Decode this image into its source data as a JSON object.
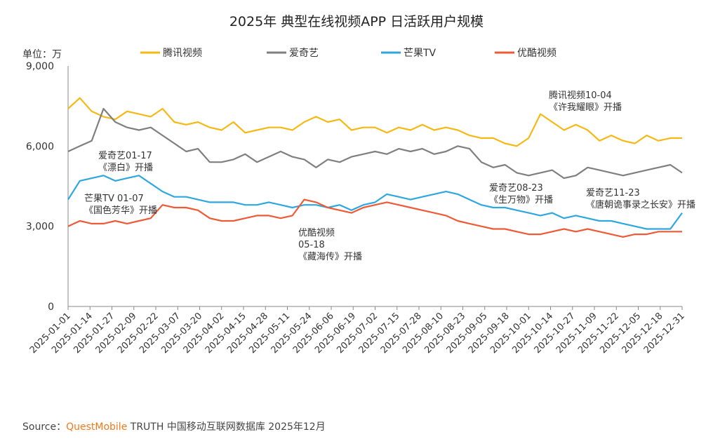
{
  "chart_data": {
    "type": "line",
    "title": "2025年 典型在线视频APP 日活跃用户规模",
    "y_label": "单位：万",
    "x": [
      "2025-01-01",
      "2025-01-08",
      "2025-01-15",
      "2025-01-22",
      "2025-01-29",
      "2025-02-05",
      "2025-02-12",
      "2025-02-19",
      "2025-02-26",
      "2025-03-05",
      "2025-03-12",
      "2025-03-19",
      "2025-03-26",
      "2025-04-02",
      "2025-04-09",
      "2025-04-16",
      "2025-04-23",
      "2025-04-30",
      "2025-05-07",
      "2025-05-14",
      "2025-05-21",
      "2025-05-28",
      "2025-06-04",
      "2025-06-11",
      "2025-06-18",
      "2025-06-25",
      "2025-07-02",
      "2025-07-09",
      "2025-07-16",
      "2025-07-23",
      "2025-07-30",
      "2025-08-06",
      "2025-08-13",
      "2025-08-20",
      "2025-08-27",
      "2025-09-03",
      "2025-09-10",
      "2025-09-17",
      "2025-09-24",
      "2025-10-01",
      "2025-10-08",
      "2025-10-15",
      "2025-10-22",
      "2025-10-29",
      "2025-11-05",
      "2025-11-12",
      "2025-11-19",
      "2025-11-26",
      "2025-12-03",
      "2025-12-10",
      "2025-12-17",
      "2025-12-24",
      "2025-12-31"
    ],
    "xlim": [
      "2025-01-01",
      "2025-12-31"
    ],
    "xticks": [
      "2025-01-01",
      "2025-01-14",
      "2025-01-27",
      "2025-02-09",
      "2025-02-22",
      "2025-03-07",
      "2025-03-20",
      "2025-04-02",
      "2025-04-15",
      "2025-04-28",
      "2025-05-11",
      "2025-05-24",
      "2025-06-06",
      "2025-06-19",
      "2025-07-02",
      "2025-07-15",
      "2025-07-28",
      "2025-08-10",
      "2025-08-23",
      "2025-09-05",
      "2025-09-18",
      "2025-10-01",
      "2025-10-14",
      "2025-10-27",
      "2025-11-09",
      "2025-11-22",
      "2025-12-05",
      "2025-12-18",
      "2025-12-31"
    ],
    "ylim": [
      0,
      9000
    ],
    "yticks": [
      0,
      {
        "value": 3000,
        "label": "3,000"
      },
      {
        "value": 6000,
        "label": "6,000"
      },
      {
        "value": 9000,
        "label": "9,000"
      }
    ],
    "series": [
      {
        "name": "腾讯视频",
        "color": "#f5b814",
        "values": [
          7400,
          7800,
          7300,
          7100,
          7000,
          7300,
          7200,
          7100,
          7400,
          6900,
          6800,
          6900,
          6700,
          6600,
          6900,
          6500,
          6600,
          6700,
          6700,
          6600,
          6900,
          7100,
          6900,
          7000,
          6600,
          6700,
          6700,
          6500,
          6700,
          6600,
          6800,
          6600,
          6700,
          6600,
          6400,
          6300,
          6300,
          6100,
          6000,
          6300,
          7200,
          6900,
          6600,
          6800,
          6600,
          6200,
          6400,
          6200,
          6100,
          6400,
          6200,
          6300,
          6300
        ]
      },
      {
        "name": "爱奇艺",
        "color": "#7f7f7f",
        "values": [
          5800,
          6000,
          6200,
          7400,
          6900,
          6700,
          6600,
          6700,
          6400,
          6100,
          5800,
          5900,
          5400,
          5400,
          5500,
          5700,
          5400,
          5600,
          5800,
          5600,
          5500,
          5200,
          5500,
          5400,
          5600,
          5700,
          5800,
          5700,
          5900,
          5800,
          5900,
          5700,
          5800,
          6000,
          5900,
          5400,
          5200,
          5300,
          5000,
          4900,
          5000,
          5100,
          4800,
          4900,
          5200,
          5100,
          5000,
          4900,
          5000,
          5100,
          5200,
          5300,
          5000
        ]
      },
      {
        "name": "芒果TV",
        "color": "#2ea7e0",
        "values": [
          4000,
          4700,
          4800,
          4900,
          4700,
          4800,
          4900,
          4600,
          4300,
          4100,
          4100,
          4000,
          3900,
          3900,
          3900,
          3800,
          3800,
          3900,
          3800,
          3700,
          3800,
          3800,
          3700,
          3800,
          3600,
          3800,
          3900,
          4200,
          4100,
          4000,
          4100,
          4200,
          4300,
          4200,
          4000,
          3800,
          3700,
          3700,
          3600,
          3500,
          3400,
          3500,
          3300,
          3400,
          3300,
          3200,
          3200,
          3100,
          3000,
          2900,
          2900,
          2900,
          3500
        ]
      },
      {
        "name": "优酷视频",
        "color": "#ef5a36",
        "values": [
          3000,
          3200,
          3100,
          3100,
          3200,
          3100,
          3200,
          3300,
          3800,
          3700,
          3700,
          3600,
          3300,
          3200,
          3200,
          3300,
          3400,
          3400,
          3300,
          3400,
          4000,
          3900,
          3700,
          3600,
          3500,
          3700,
          3800,
          3900,
          3800,
          3700,
          3600,
          3500,
          3400,
          3200,
          3100,
          3000,
          2900,
          2900,
          2800,
          2700,
          2700,
          2800,
          2900,
          2800,
          2900,
          2800,
          2700,
          2600,
          2700,
          2700,
          2800,
          2800,
          2800
        ]
      }
    ],
    "annotations": [
      {
        "lines": [
          "腾讯视频10-04",
          "《许我耀眼》开播"
        ]
      },
      {
        "lines": [
          "爱奇艺01-17",
          "《漂白》开播"
        ]
      },
      {
        "lines": [
          "芒果TV 01-07",
          "《国色芳华》开播"
        ]
      },
      {
        "lines": [
          "优酷视频",
          "05-18",
          "《藏海传》开播"
        ]
      },
      {
        "lines": [
          "爱奇艺08-23",
          "《生万物》开播"
        ]
      },
      {
        "lines": [
          "爱奇艺11-23",
          "《唐朝诡事录之长安》开播"
        ]
      }
    ],
    "source": {
      "prefix": "Source：",
      "brand": "QuestMobile",
      "text": "TRUTH 中国移动互联网数据库 2025年12月"
    }
  }
}
